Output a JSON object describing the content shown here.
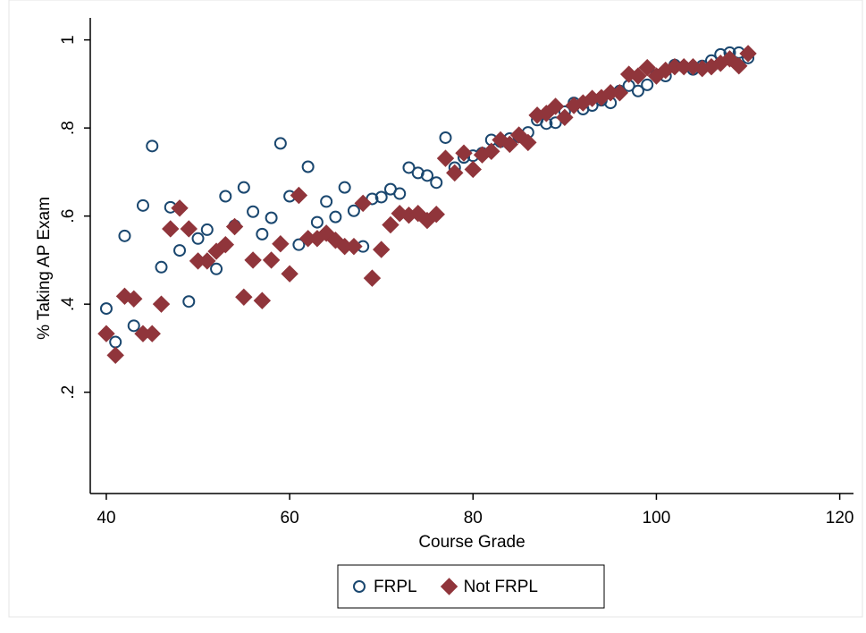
{
  "chart_data": {
    "type": "scatter",
    "x_label": "Course Grade",
    "y_label": "% Taking AP Exam",
    "x": [
      40,
      41,
      42,
      43,
      44,
      45,
      46,
      47,
      48,
      49,
      50,
      51,
      52,
      53,
      54,
      55,
      56,
      57,
      58,
      59,
      60,
      61,
      62,
      63,
      64,
      65,
      66,
      67,
      68,
      69,
      70,
      71,
      72,
      73,
      74,
      75,
      76,
      77,
      78,
      79,
      80,
      81,
      82,
      83,
      84,
      85,
      86,
      87,
      88,
      89,
      90,
      91,
      92,
      93,
      94,
      95,
      96,
      97,
      98,
      99,
      100,
      101,
      102,
      103,
      104,
      105,
      106,
      107,
      108,
      109,
      110
    ],
    "series": [
      {
        "name": "FRPL",
        "color": "#1a476f",
        "marker": "circle-open",
        "values": [
          0.39,
          0.314,
          0.555,
          0.351,
          0.624,
          0.759,
          0.484,
          0.62,
          0.522,
          0.406,
          0.549,
          0.569,
          0.48,
          0.645,
          0.578,
          0.665,
          0.61,
          0.559,
          0.596,
          0.765,
          0.645,
          0.535,
          0.712,
          0.586,
          0.633,
          0.598,
          0.665,
          0.612,
          0.531,
          0.639,
          0.643,
          0.661,
          0.651,
          0.71,
          0.698,
          0.692,
          0.676,
          0.778,
          0.71,
          0.733,
          0.737,
          0.743,
          0.773,
          0.769,
          0.776,
          0.78,
          0.79,
          0.818,
          0.81,
          0.812,
          0.837,
          0.857,
          0.843,
          0.851,
          0.863,
          0.857,
          0.884,
          0.896,
          0.884,
          0.898,
          0.92,
          0.918,
          0.943,
          0.939,
          0.933,
          0.941,
          0.953,
          0.967,
          0.971,
          0.971,
          0.959
        ]
      },
      {
        "name": "Not FRPL",
        "color": "#90353b",
        "marker": "diamond",
        "values": [
          0.333,
          0.284,
          0.418,
          0.412,
          0.333,
          0.333,
          0.4,
          0.571,
          0.618,
          0.571,
          0.498,
          0.498,
          0.52,
          0.535,
          0.576,
          0.416,
          0.5,
          0.408,
          0.5,
          0.537,
          0.469,
          0.647,
          0.549,
          0.549,
          0.561,
          0.545,
          0.531,
          0.531,
          0.629,
          0.459,
          0.524,
          0.58,
          0.606,
          0.602,
          0.606,
          0.59,
          0.604,
          0.731,
          0.698,
          0.743,
          0.706,
          0.739,
          0.747,
          0.773,
          0.763,
          0.784,
          0.767,
          0.829,
          0.833,
          0.849,
          0.824,
          0.851,
          0.857,
          0.867,
          0.869,
          0.88,
          0.88,
          0.922,
          0.918,
          0.937,
          0.918,
          0.931,
          0.939,
          0.939,
          0.939,
          0.935,
          0.939,
          0.947,
          0.957,
          0.941,
          0.969
        ]
      }
    ],
    "xlim": [
      38.25,
      121.5
    ],
    "ylim": [
      -0.03,
      1.05
    ],
    "xticks": [
      40,
      60,
      80,
      100,
      120
    ],
    "yticks": [
      {
        "value": 0.2,
        "label": ".2"
      },
      {
        "value": 0.4,
        "label": ".4"
      },
      {
        "value": 0.6,
        "label": ".6"
      },
      {
        "value": 0.8,
        "label": ".8"
      },
      1
    ],
    "grid": false,
    "legend": "bottom"
  }
}
